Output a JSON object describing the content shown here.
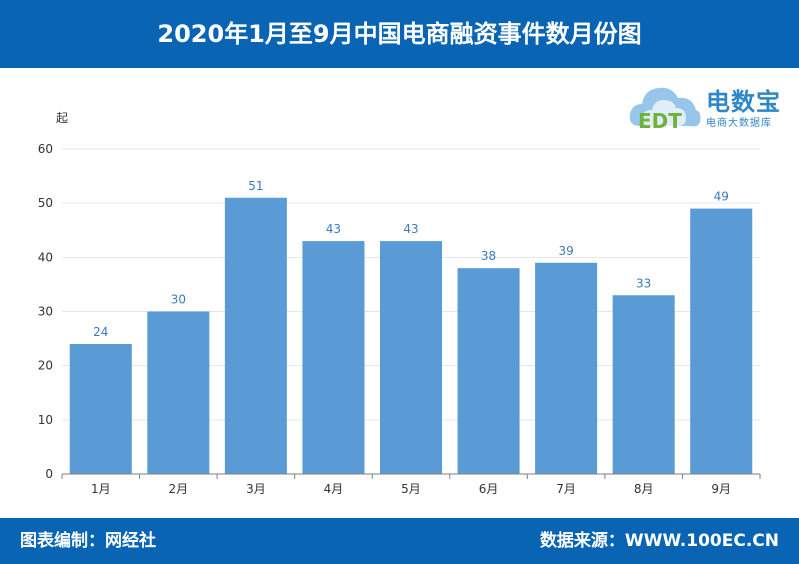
{
  "header": {
    "title": "2020年1月至9月中国电商融资事件数月份图"
  },
  "footer": {
    "editor": "图表编制：网经社",
    "source": "数据来源：WWW.100EC.CN"
  },
  "logo": {
    "brand": "电数宝",
    "subtitle": "电商大数据库",
    "mark_text": "EDT"
  },
  "colors": {
    "bar": "#5b9bd5",
    "header_bg": "#0a64b4",
    "label": "#3a7bbf",
    "axis": "#7f7f7f",
    "grid": "#e6e6e6"
  },
  "chart_data": {
    "type": "bar",
    "categories": [
      "1月",
      "2月",
      "3月",
      "4月",
      "5月",
      "6月",
      "7月",
      "8月",
      "9月"
    ],
    "values": [
      24,
      30,
      51,
      43,
      43,
      38,
      39,
      33,
      49
    ],
    "ylabel": "起",
    "ylim": [
      0,
      60
    ],
    "yticks": [
      0,
      10,
      20,
      30,
      40,
      50,
      60
    ],
    "grid": true,
    "data_labels": true
  }
}
